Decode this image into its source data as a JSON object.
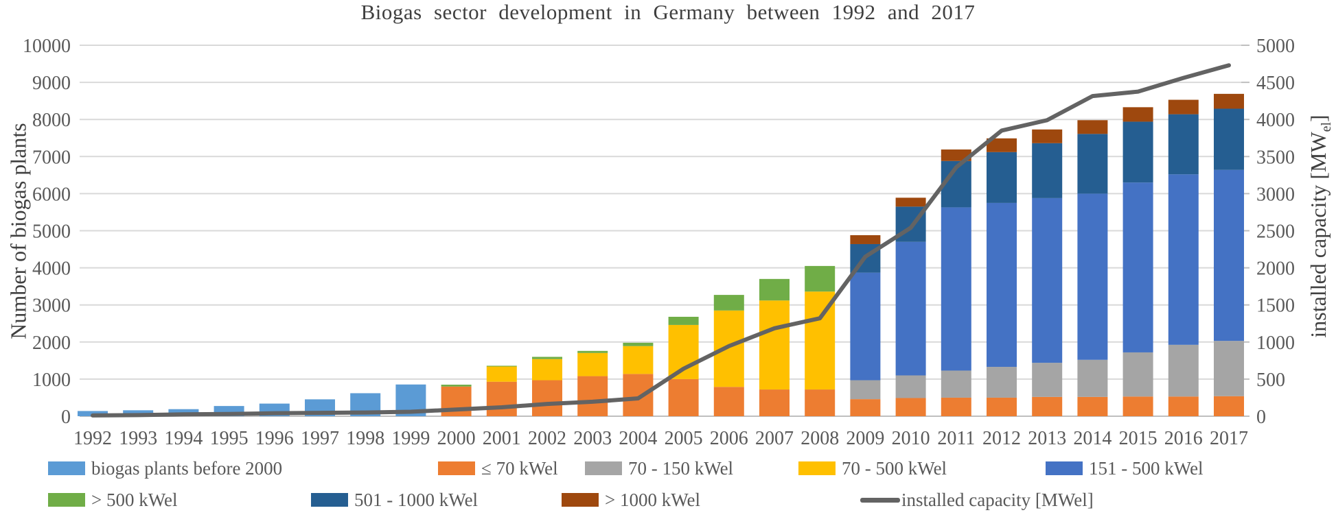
{
  "title": "Biogas sector development in Germany between 1992 and 2017",
  "axes": {
    "y_left": {
      "title": "Number of biogas plants",
      "min": 0,
      "max": 10000,
      "step": 1000
    },
    "y_right": {
      "title_main": "installed capacity [MW",
      "title_sub": "el",
      "title_end": "]",
      "min": 0,
      "max": 5000,
      "step": 500
    }
  },
  "colors": {
    "grid": "#d9d9d9",
    "axis_line": "#bfbfbf",
    "tick_text": "#595959",
    "title_text": "#3f3f3f",
    "before2000": "#5b9bd5",
    "le70": "#ed7d31",
    "kw70_150": "#a5a5a5",
    "kw70_500": "#ffc000",
    "kw151_500": "#4472c4",
    "gt500": "#70ad47",
    "kw501_1000": "#255e91",
    "gt1000": "#9e480e",
    "capacity_line": "#636363"
  },
  "legend": {
    "rows": [
      [
        {
          "label": "biogas plants before 2000",
          "color": "#5b9bd5",
          "type": "swatch"
        },
        {
          "label": "≤ 70 kWel",
          "color": "#ed7d31",
          "type": "swatch"
        },
        {
          "label": "70 - 150 kWel",
          "color": "#a5a5a5",
          "type": "swatch"
        },
        {
          "label": "70 - 500 kWel",
          "color": "#ffc000",
          "type": "swatch"
        },
        {
          "label": "151 - 500 kWel",
          "color": "#4472c4",
          "type": "swatch"
        }
      ],
      [
        {
          "label": "> 500 kWel",
          "color": "#70ad47",
          "type": "swatch"
        },
        {
          "label": "501 - 1000 kWel",
          "color": "#255e91",
          "type": "swatch"
        },
        {
          "label": "> 1000 kWel",
          "color": "#9e480e",
          "type": "swatch"
        },
        {
          "label": "installed capacity [MWel]",
          "color": "#636363",
          "type": "line"
        }
      ]
    ]
  },
  "chart_data": {
    "type": "bar",
    "subtype": "stacked-bars-with-line-overlay",
    "title": "Biogas sector development in Germany between 1992 and 2017",
    "xlabel": "",
    "ylabel_left": "Number of biogas plants",
    "ylabel_right": "installed capacity [MWel]",
    "ylim_left": [
      0,
      10000
    ],
    "ylim_right": [
      0,
      5000
    ],
    "grid": true,
    "legend_position": "bottom",
    "categories": [
      1992,
      1993,
      1994,
      1995,
      1996,
      1997,
      1998,
      1999,
      2000,
      2001,
      2002,
      2003,
      2004,
      2005,
      2006,
      2007,
      2008,
      2009,
      2010,
      2011,
      2012,
      2013,
      2014,
      2015,
      2016,
      2017
    ],
    "series": [
      {
        "name": "biogas plants before 2000",
        "color": "#5b9bd5",
        "axis": "left",
        "values": [
          140,
          160,
          190,
          275,
          340,
          455,
          620,
          855,
          0,
          0,
          0,
          0,
          0,
          0,
          0,
          0,
          0,
          0,
          0,
          0,
          0,
          0,
          0,
          0,
          0,
          0
        ]
      },
      {
        "name": "≤ 70 kWel",
        "color": "#ed7d31",
        "axis": "left",
        "values": [
          0,
          0,
          0,
          0,
          0,
          0,
          0,
          0,
          800,
          930,
          970,
          1080,
          1140,
          1000,
          790,
          720,
          720,
          460,
          490,
          500,
          500,
          520,
          520,
          530,
          530,
          540
        ]
      },
      {
        "name": "70 - 150 kWel",
        "color": "#a5a5a5",
        "axis": "left",
        "values": [
          0,
          0,
          0,
          0,
          0,
          0,
          0,
          0,
          0,
          0,
          0,
          0,
          0,
          0,
          0,
          0,
          0,
          510,
          610,
          730,
          830,
          920,
          1000,
          1190,
          1395,
          1490
        ]
      },
      {
        "name": "70 - 500 kWel",
        "color": "#ffc000",
        "axis": "left",
        "values": [
          0,
          0,
          0,
          0,
          0,
          0,
          0,
          0,
          0,
          410,
          570,
          625,
          750,
          1460,
          2060,
          2400,
          2640,
          0,
          0,
          0,
          0,
          0,
          0,
          0,
          0,
          0
        ]
      },
      {
        "name": "151 - 500 kWel",
        "color": "#4472c4",
        "axis": "left",
        "values": [
          0,
          0,
          0,
          0,
          0,
          0,
          0,
          0,
          0,
          0,
          0,
          0,
          0,
          0,
          0,
          0,
          0,
          2900,
          3600,
          4400,
          4420,
          4440,
          4480,
          4580,
          4595,
          4610
        ]
      },
      {
        "name": "> 500 kWel",
        "color": "#70ad47",
        "axis": "left",
        "values": [
          0,
          0,
          0,
          0,
          0,
          0,
          0,
          0,
          50,
          20,
          60,
          55,
          90,
          220,
          420,
          580,
          690,
          0,
          0,
          0,
          0,
          0,
          0,
          0,
          0,
          0
        ]
      },
      {
        "name": "501 - 1000 kWel",
        "color": "#255e91",
        "axis": "left",
        "values": [
          0,
          0,
          0,
          0,
          0,
          0,
          0,
          0,
          0,
          0,
          0,
          0,
          0,
          0,
          0,
          0,
          0,
          770,
          950,
          1250,
          1370,
          1480,
          1610,
          1640,
          1620,
          1650
        ]
      },
      {
        "name": "> 1000 kWel",
        "color": "#9e480e",
        "axis": "left",
        "values": [
          0,
          0,
          0,
          0,
          0,
          0,
          0,
          0,
          0,
          0,
          0,
          0,
          0,
          0,
          0,
          0,
          0,
          240,
          240,
          310,
          370,
          370,
          370,
          390,
          390,
          400
        ]
      }
    ],
    "line_series": {
      "name": "installed capacity [MWel]",
      "color": "#636363",
      "axis": "right",
      "values": [
        10,
        15,
        25,
        30,
        40,
        45,
        50,
        60,
        90,
        120,
        165,
        195,
        240,
        640,
        945,
        1185,
        1320,
        2150,
        2540,
        3355,
        3850,
        3990,
        4315,
        4375,
        4560,
        4730
      ]
    }
  }
}
